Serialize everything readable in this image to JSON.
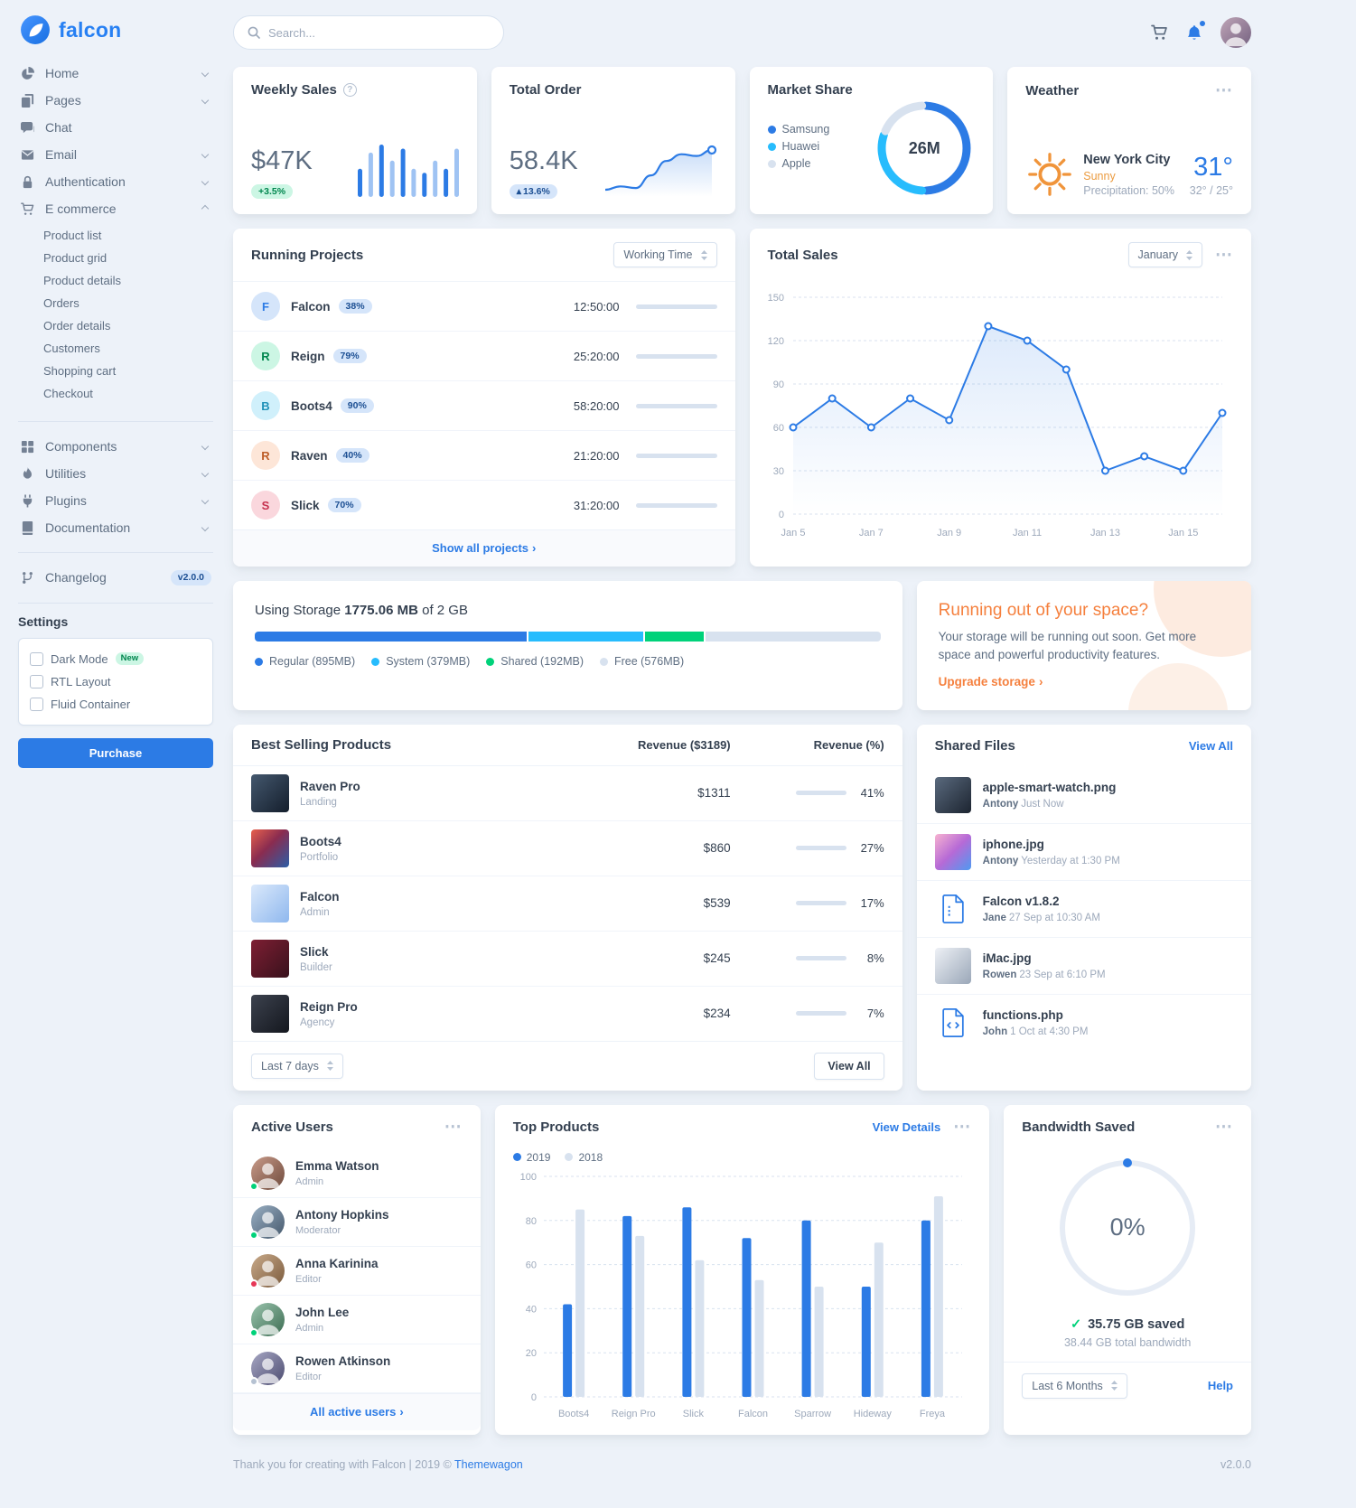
{
  "icons": {
    "dots": "⋯",
    "caret_up": "▴",
    "chevron_right": "›",
    "check": "✓",
    "question": "?"
  },
  "brand": {
    "name": "falcon"
  },
  "topbar": {
    "search_placeholder": "Search..."
  },
  "sidebar": {
    "nav": [
      {
        "label": "Home"
      },
      {
        "label": "Pages"
      },
      {
        "label": "Chat"
      },
      {
        "label": "Email"
      },
      {
        "label": "Authentication"
      },
      {
        "label": "E commerce"
      }
    ],
    "ecommerce_items": [
      {
        "label": "Product list"
      },
      {
        "label": "Product grid"
      },
      {
        "label": "Product details"
      },
      {
        "label": "Orders"
      },
      {
        "label": "Order details"
      },
      {
        "label": "Customers"
      },
      {
        "label": "Shopping cart"
      },
      {
        "label": "Checkout"
      }
    ],
    "nav2": [
      {
        "label": "Components"
      },
      {
        "label": "Utilities"
      },
      {
        "label": "Plugins"
      },
      {
        "label": "Documentation"
      }
    ],
    "changelog": {
      "label": "Changelog",
      "version": "v2.0.0"
    },
    "settings": {
      "heading": "Settings",
      "dark_mode": "Dark Mode",
      "dark_mode_badge": "New",
      "rtl": "RTL Layout",
      "fluid": "Fluid Container",
      "purchase": "Purchase"
    }
  },
  "stats": {
    "weekly_sales": {
      "title": "Weekly Sales",
      "value": "$47K",
      "badge": "+3.5%"
    },
    "total_order": {
      "title": "Total Order",
      "value": "58.4K",
      "badge": "13.6%"
    },
    "market_share": {
      "title": "Market Share"
    },
    "weather": {
      "title": "Weather",
      "city": "New York City",
      "condition": "Sunny",
      "precipitation": "Precipitation: 50%",
      "temp": "31°",
      "range": "32° / 25°"
    }
  },
  "projects": {
    "title": "Running Projects",
    "filter": "Working Time",
    "rows": [
      {
        "initial": "F",
        "name": "Falcon",
        "pct": "38%",
        "time": "12:50:00",
        "progress": 38
      },
      {
        "initial": "R",
        "name": "Reign",
        "pct": "79%",
        "time": "25:20:00",
        "progress": 79
      },
      {
        "initial": "B",
        "name": "Boots4",
        "pct": "90%",
        "time": "58:20:00",
        "progress": 90
      },
      {
        "initial": "R",
        "name": "Raven",
        "pct": "40%",
        "time": "21:20:00",
        "progress": 40
      },
      {
        "initial": "S",
        "name": "Slick",
        "pct": "70%",
        "time": "31:20:00",
        "progress": 70
      }
    ],
    "footer_link": "Show all projects"
  },
  "total_sales": {
    "title": "Total Sales",
    "filter": "January"
  },
  "storage": {
    "title_prefix": "Using Storage",
    "used": "1775.06 MB",
    "suffix": "of 2 GB",
    "segments": [
      {
        "label": "Regular (895MB)",
        "color": "#2c7be5",
        "width_pct": 43.8
      },
      {
        "label": "System (379MB)",
        "color": "#27bcfd",
        "width_pct": 18.6
      },
      {
        "label": "Shared (192MB)",
        "color": "#00d27a",
        "width_pct": 9.4
      },
      {
        "label": "Free (576MB)",
        "color": "#d8e2ef",
        "width_pct": 28.2
      }
    ]
  },
  "space": {
    "title": "Running out of your space?",
    "body": "Your storage will be running out soon. Get more space and powerful productivity features.",
    "link": "Upgrade storage"
  },
  "best_selling": {
    "title": "Best Selling Products",
    "col_revenue": "Revenue ($3189)",
    "col_revenue_pct": "Revenue (%)",
    "rows": [
      {
        "name": "Raven Pro",
        "category": "Landing",
        "revenue": "$1311",
        "pct_label": "41%",
        "pct": 41
      },
      {
        "name": "Boots4",
        "category": "Portfolio",
        "revenue": "$860",
        "pct_label": "27%",
        "pct": 27
      },
      {
        "name": "Falcon",
        "category": "Admin",
        "revenue": "$539",
        "pct_label": "17%",
        "pct": 17
      },
      {
        "name": "Slick",
        "category": "Builder",
        "revenue": "$245",
        "pct_label": "8%",
        "pct": 8
      },
      {
        "name": "Reign Pro",
        "category": "Agency",
        "revenue": "$234",
        "pct_label": "7%",
        "pct": 7
      }
    ],
    "filter": "Last 7 days",
    "view_all": "View All"
  },
  "shared_files": {
    "title": "Shared Files",
    "view_all": "View All",
    "files": [
      {
        "name": "apple-smart-watch.png",
        "user": "Antony",
        "time": "Just Now"
      },
      {
        "name": "iphone.jpg",
        "user": "Antony",
        "time": "Yesterday at 1:30 PM"
      },
      {
        "name": "Falcon v1.8.2",
        "user": "Jane",
        "time": "27 Sep at 10:30 AM"
      },
      {
        "name": "iMac.jpg",
        "user": "Rowen",
        "time": "23 Sep at 6:10 PM"
      },
      {
        "name": "functions.php",
        "user": "John",
        "time": "1 Oct at 4:30 PM"
      }
    ]
  },
  "active_users": {
    "title": "Active Users",
    "users": [
      {
        "name": "Emma Watson",
        "role": "Admin"
      },
      {
        "name": "Antony Hopkins",
        "role": "Moderator"
      },
      {
        "name": "Anna Karinina",
        "role": "Editor"
      },
      {
        "name": "John Lee",
        "role": "Admin"
      },
      {
        "name": "Rowen Atkinson",
        "role": "Editor"
      }
    ],
    "footer_link": "All active users"
  },
  "top_products": {
    "title": "Top Products",
    "view_details": "View Details"
  },
  "bandwidth": {
    "title": "Bandwidth Saved",
    "saved": "35.75 GB saved",
    "total": "38.44 GB total bandwidth",
    "filter": "Last 6 Months",
    "help": "Help"
  },
  "page_footer": {
    "text": "Thank you for creating with Falcon | 2019 © ",
    "brand_link": "Themewagon",
    "version": "v2.0.0"
  },
  "chart_data": [
    {
      "id": "weekly-sales",
      "type": "bar",
      "title": "Weekly Sales",
      "values": [
        35,
        55,
        65,
        45,
        60,
        35,
        30,
        45,
        35,
        60
      ]
    },
    {
      "id": "total-order",
      "type": "line",
      "title": "Total Order",
      "values": [
        18,
        22,
        20,
        35,
        52,
        60,
        58,
        65
      ]
    },
    {
      "id": "market-share",
      "type": "pie",
      "title": "Market Share",
      "labels": [
        "Samsung",
        "Huawei",
        "Apple"
      ],
      "values": [
        13,
        8,
        5
      ],
      "colors": [
        "#2c7be5",
        "#27bcfd",
        "#d8e2ef"
      ],
      "center_label": "26M"
    },
    {
      "id": "total-sales",
      "type": "line",
      "title": "Total Sales",
      "values": [
        60,
        80,
        60,
        80,
        65,
        130,
        120,
        100,
        30,
        40,
        30,
        70
      ],
      "xticks": [
        "Jan 5",
        "Jan 7",
        "Jan 9",
        "Jan 11",
        "Jan 13",
        "Jan 15"
      ],
      "ylim": [
        0,
        150
      ],
      "yticks": [
        0,
        30,
        60,
        90,
        120,
        150
      ],
      "grid": "dashed",
      "legend_position": "none"
    },
    {
      "id": "top-products",
      "type": "bar",
      "title": "Top Products",
      "categories": [
        "Boots4",
        "Reign Pro",
        "Slick",
        "Falcon",
        "Sparrow",
        "Hideway",
        "Freya"
      ],
      "series": [
        {
          "name": "2019",
          "color": "#2c7be5",
          "values": [
            42,
            82,
            86,
            72,
            80,
            50,
            80
          ]
        },
        {
          "name": "2018",
          "color": "#d8e2ef",
          "values": [
            85,
            73,
            62,
            53,
            50,
            70,
            91
          ]
        }
      ],
      "ylim": [
        0,
        100
      ],
      "yticks": [
        0,
        20,
        40,
        60,
        80,
        100
      ],
      "grid": "dashed",
      "legend_position": "top-left"
    },
    {
      "id": "bandwidth-ring",
      "type": "ring",
      "percent": 0,
      "label": "0%"
    }
  ]
}
